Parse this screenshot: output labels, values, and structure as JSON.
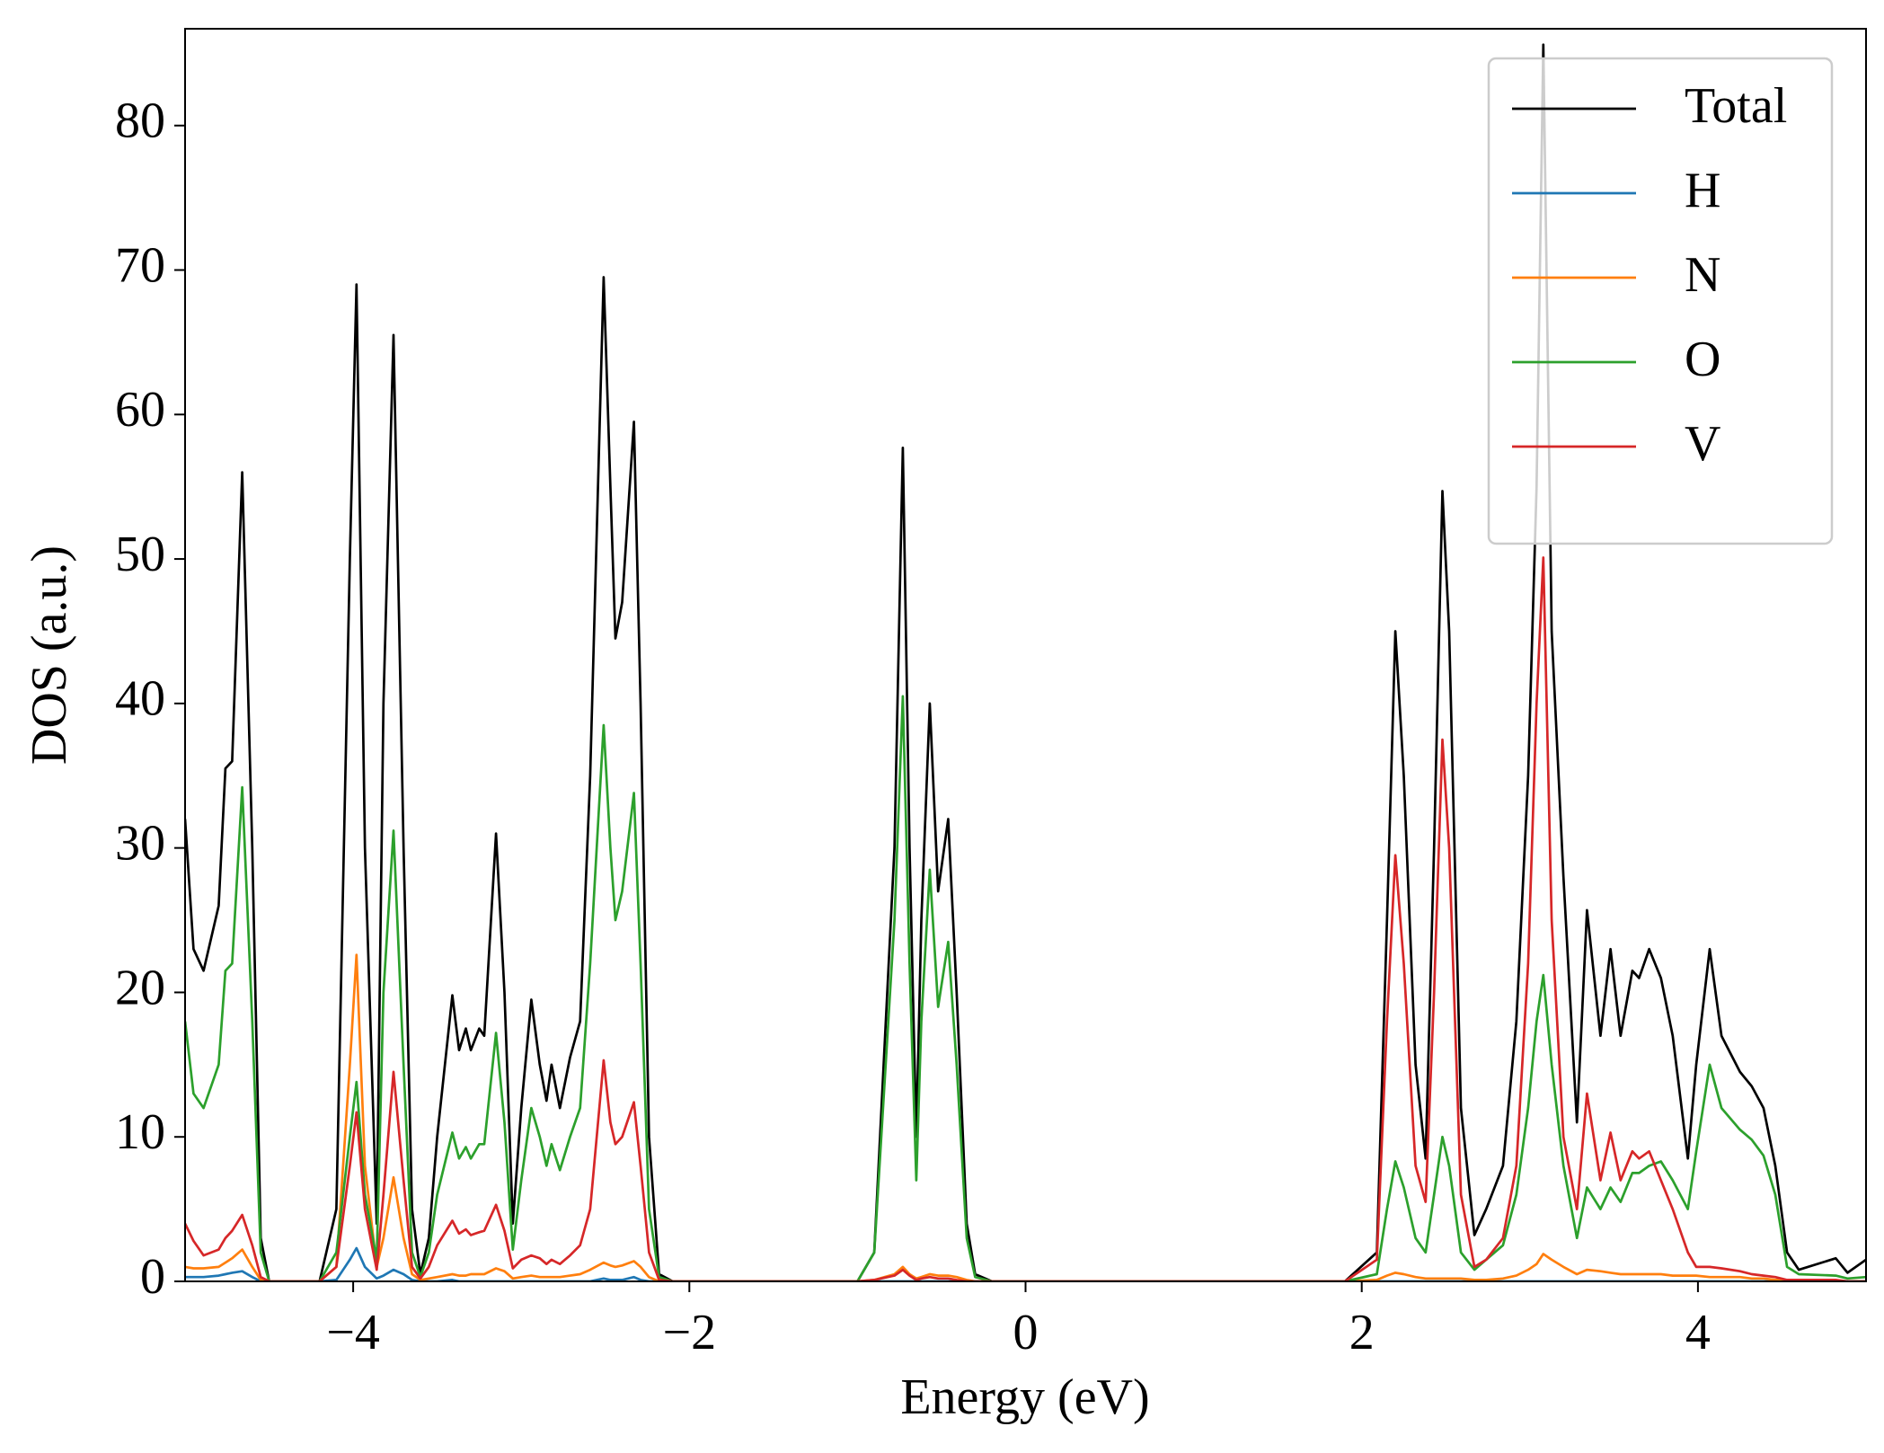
{
  "chart_data": {
    "type": "line",
    "xlabel": "Energy (eV)",
    "ylabel": "DOS (a.u.)",
    "x": [
      -5,
      -4.95,
      -4.89,
      -4.8,
      -4.76,
      -4.72,
      -4.66,
      -4.6,
      -4.55,
      -4.5,
      -4.2,
      -4.1,
      -4.02,
      -3.98,
      -3.93,
      -3.86,
      -3.82,
      -3.76,
      -3.7,
      -3.65,
      -3.6,
      -3.55,
      -3.5,
      -3.41,
      -3.37,
      -3.33,
      -3.3,
      -3.25,
      -3.22,
      -3.15,
      -3.1,
      -3.05,
      -3.0,
      -2.94,
      -2.89,
      -2.85,
      -2.82,
      -2.77,
      -2.71,
      -2.65,
      -2.59,
      -2.51,
      -2.47,
      -2.44,
      -2.4,
      -2.33,
      -2.29,
      -2.24,
      -2.18,
      -2.1,
      -1.0,
      -0.9,
      -0.78,
      -0.73,
      -0.69,
      -0.65,
      -0.62,
      -0.57,
      -0.52,
      -0.46,
      -0.41,
      -0.35,
      -0.3,
      -0.2,
      1.9,
      2.09,
      2.15,
      2.2,
      2.25,
      2.32,
      2.38,
      2.43,
      2.48,
      2.52,
      2.59,
      2.67,
      2.74,
      2.84,
      2.92,
      2.99,
      3.04,
      3.08,
      3.13,
      3.2,
      3.28,
      3.34,
      3.42,
      3.48,
      3.54,
      3.61,
      3.65,
      3.71,
      3.78,
      3.85,
      3.94,
      3.99,
      4.07,
      4.14,
      4.25,
      4.32,
      4.39,
      4.46,
      4.53,
      4.6,
      4.82,
      4.89,
      5
    ],
    "series": [
      {
        "name": "Total",
        "color": "#000000",
        "values": [
          32,
          23,
          21.5,
          26,
          35.5,
          36,
          56,
          30,
          3,
          0,
          0,
          5,
          50,
          69,
          30,
          4,
          40,
          65.5,
          30,
          5,
          0.5,
          3,
          10,
          19.8,
          16,
          17.5,
          16,
          17.5,
          17,
          31,
          20,
          4,
          12,
          19.5,
          15,
          12.5,
          15,
          12,
          15.5,
          18,
          35,
          69.5,
          55,
          44.5,
          47,
          59.5,
          40,
          10,
          0.5,
          0,
          0,
          2,
          30,
          57.7,
          30,
          10,
          25,
          40,
          27,
          32,
          20,
          4,
          0.5,
          0,
          0,
          2,
          25,
          45,
          35,
          15,
          8.5,
          30,
          54.7,
          45,
          12,
          3.2,
          5,
          8,
          18,
          35,
          55,
          85.6,
          45,
          28,
          11,
          25.7,
          17,
          23,
          17,
          21.5,
          21,
          23,
          21,
          17,
          8.5,
          15,
          23,
          17,
          14.5,
          13.5,
          12,
          8,
          2,
          0.8,
          1.6,
          0.6,
          1.5
        ]
      },
      {
        "name": "H",
        "color": "#1f77b4",
        "values": [
          0.3,
          0.3,
          0.3,
          0.4,
          0.5,
          0.6,
          0.7,
          0.3,
          0,
          0,
          0,
          0.1,
          1.5,
          2.3,
          1,
          0.2,
          0.4,
          0.8,
          0.5,
          0.1,
          0,
          0,
          0,
          0.1,
          0,
          0,
          0,
          0,
          0,
          0,
          0,
          0,
          0,
          0,
          0,
          0,
          0,
          0,
          0,
          0,
          0,
          0.2,
          0.1,
          0.1,
          0.1,
          0.3,
          0.1,
          0,
          0,
          0,
          0,
          0,
          0,
          0,
          0,
          0,
          0,
          0,
          0,
          0,
          0,
          0,
          0,
          0,
          0,
          0,
          0,
          0,
          0,
          0,
          0,
          0,
          0,
          0,
          0,
          0,
          0,
          0,
          0,
          0,
          0,
          0,
          0,
          0,
          0,
          0,
          0,
          0,
          0,
          0,
          0,
          0,
          0,
          0,
          0,
          0,
          0,
          0,
          0,
          0,
          0,
          0,
          0,
          0,
          0,
          0,
          0
        ]
      },
      {
        "name": "N",
        "color": "#ff7f0e",
        "values": [
          1.0,
          0.9,
          0.9,
          1.0,
          1.3,
          1.6,
          2.2,
          1.0,
          0.1,
          0,
          0,
          1,
          15,
          22.6,
          8,
          1,
          3,
          7.2,
          3,
          0.5,
          0.1,
          0.2,
          0.3,
          0.5,
          0.4,
          0.4,
          0.5,
          0.5,
          0.5,
          0.9,
          0.7,
          0.2,
          0.3,
          0.4,
          0.3,
          0.3,
          0.3,
          0.3,
          0.4,
          0.5,
          0.8,
          1.3,
          1.1,
          1.0,
          1.1,
          1.4,
          1.0,
          0.3,
          0,
          0,
          0,
          0.1,
          0.5,
          1.0,
          0.5,
          0.2,
          0.3,
          0.5,
          0.4,
          0.4,
          0.3,
          0.1,
          0,
          0,
          0,
          0.1,
          0.4,
          0.6,
          0.5,
          0.3,
          0.2,
          0.2,
          0.2,
          0.2,
          0.2,
          0.1,
          0.1,
          0.2,
          0.4,
          0.8,
          1.2,
          1.9,
          1.5,
          1.0,
          0.5,
          0.8,
          0.7,
          0.6,
          0.5,
          0.5,
          0.5,
          0.5,
          0.5,
          0.4,
          0.4,
          0.4,
          0.3,
          0.3,
          0.3,
          0.2,
          0.2,
          0.1,
          0.1,
          0,
          0,
          0,
          0
        ]
      },
      {
        "name": "O",
        "color": "#2ca02c",
        "values": [
          18,
          13,
          12,
          15,
          21.5,
          22,
          34.2,
          18,
          2,
          0,
          0,
          2,
          10,
          13.8,
          6,
          1.5,
          20,
          31.2,
          15,
          2,
          0.3,
          2,
          6,
          10.3,
          8.5,
          9.3,
          8.5,
          9.5,
          9.5,
          17.2,
          11,
          2.2,
          7,
          12,
          10,
          8,
          9.5,
          7.7,
          10,
          12,
          22,
          38.5,
          30,
          25,
          27,
          33.8,
          22,
          5,
          0.3,
          0,
          0,
          2,
          25,
          40.5,
          22,
          7,
          18,
          28.5,
          19,
          23.5,
          15,
          3,
          0.3,
          0,
          0,
          0.5,
          5,
          8.3,
          6.5,
          3,
          2,
          6,
          10,
          8,
          2,
          0.8,
          1.5,
          2.5,
          6,
          12,
          18,
          21.2,
          15,
          8,
          3,
          6.5,
          5,
          6.5,
          5.5,
          7.5,
          7.5,
          8,
          8.3,
          7,
          5,
          9,
          15,
          12,
          10.5,
          9.8,
          8.7,
          6,
          1,
          0.5,
          0.4,
          0.2,
          0.3
        ]
      },
      {
        "name": "V",
        "color": "#d62728",
        "values": [
          4,
          2.8,
          1.8,
          2.2,
          3,
          3.5,
          4.6,
          2.5,
          0.3,
          0,
          0,
          1,
          8,
          11.7,
          5,
          0.8,
          6,
          14.5,
          7,
          1,
          0.2,
          1,
          2.5,
          4.2,
          3.3,
          3.6,
          3.2,
          3.4,
          3.5,
          5.3,
          3.5,
          0.9,
          1.5,
          1.8,
          1.6,
          1.2,
          1.5,
          1.2,
          1.8,
          2.5,
          5,
          15.3,
          11,
          9.5,
          10,
          12.4,
          8,
          2,
          0.1,
          0,
          0,
          0.1,
          0.4,
          0.8,
          0.4,
          0.1,
          0.2,
          0.3,
          0.2,
          0.2,
          0.1,
          0,
          0,
          0,
          0,
          1.5,
          18,
          29.5,
          22,
          8,
          5.5,
          20,
          37.5,
          30,
          6,
          1,
          1.5,
          3,
          8,
          22,
          40,
          50.1,
          25,
          10,
          5,
          13,
          7,
          10.3,
          7,
          9,
          8.5,
          9,
          7,
          5,
          2,
          1,
          1,
          0.9,
          0.7,
          0.5,
          0.4,
          0.3,
          0.1,
          0.1,
          0.1,
          0,
          0
        ]
      }
    ],
    "xlim": [
      -5,
      5
    ],
    "ylim": [
      0,
      86.7
    ],
    "xticks": [
      {
        "value": -4,
        "label": "−4"
      },
      {
        "value": -2,
        "label": "−2"
      },
      0,
      2,
      4
    ],
    "yticks": [
      0,
      10,
      20,
      30,
      40,
      50,
      60,
      70,
      80
    ],
    "legend": "upper right"
  }
}
